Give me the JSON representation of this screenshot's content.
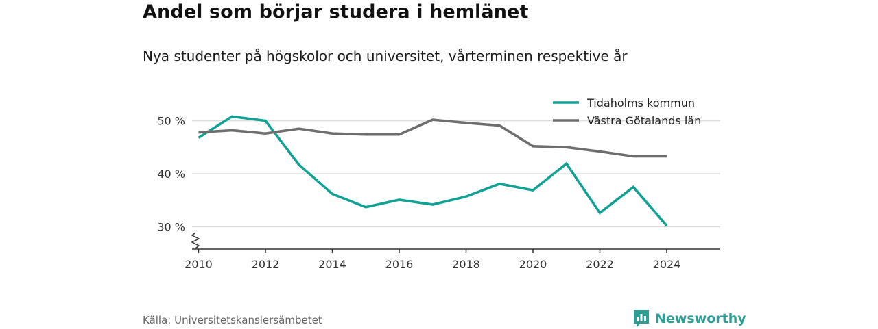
{
  "title": "Andel som börjar studera i hemlänet",
  "subtitle": "Nya studenter på högskolor och universitet, vårterminen respektive år",
  "source": "Källa: Universitetskanslersämbetet",
  "brand": {
    "name": "Newsworthy",
    "icon": "newsworthy-logo-icon",
    "color": "#2e9e94"
  },
  "chart_data": {
    "type": "line",
    "x": [
      2010,
      2011,
      2012,
      2013,
      2014,
      2015,
      2016,
      2017,
      2018,
      2019,
      2020,
      2021,
      2022,
      2023,
      2024
    ],
    "series": [
      {
        "name": "Tidaholms kommun",
        "color": "#12a195",
        "values": [
          46.8,
          50.8,
          50.0,
          41.7,
          36.2,
          33.7,
          35.1,
          34.2,
          35.7,
          38.1,
          36.9,
          41.9,
          32.6,
          37.5,
          30.2
        ]
      },
      {
        "name": "Västra Götalands län",
        "color": "#6e6e6e",
        "values": [
          47.8,
          48.2,
          47.6,
          48.5,
          47.6,
          47.4,
          47.4,
          50.2,
          49.6,
          49.1,
          45.2,
          45.0,
          44.2,
          43.3,
          43.3
        ]
      }
    ],
    "y_ticks": [
      30,
      40,
      50
    ],
    "y_tick_labels": [
      "30 %",
      "40 %",
      "50 %"
    ],
    "x_ticks": [
      2010,
      2012,
      2014,
      2016,
      2018,
      2020,
      2022,
      2024
    ],
    "x_tick_labels": [
      "2010",
      "2012",
      "2014",
      "2016",
      "2018",
      "2020",
      "2022",
      "2024"
    ],
    "xlim": [
      2009.6,
      2025.6
    ],
    "ylim": [
      25.8,
      51.5
    ],
    "grid": true,
    "y_axis_break": true,
    "legend_position": "top-right"
  }
}
